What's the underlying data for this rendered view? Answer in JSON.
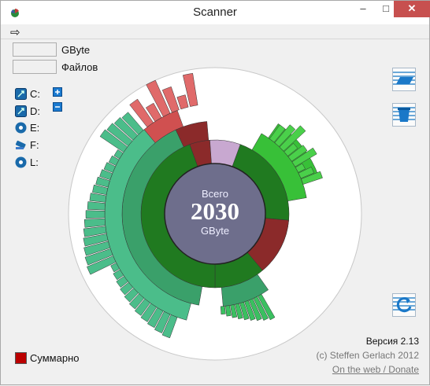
{
  "window": {
    "title": "Scanner",
    "minimize": "–",
    "maximize": "□",
    "close": "✕"
  },
  "menu": {
    "icon": "arrow-right-icon"
  },
  "fields": {
    "size_unit": "GByte",
    "files_label": "Файлов",
    "size_value": "",
    "files_value": ""
  },
  "drives": [
    {
      "label": "C:",
      "icon": "hard-drive-icon"
    },
    {
      "label": "D:",
      "icon": "hard-drive-icon"
    },
    {
      "label": "E:",
      "icon": "cd-drive-icon"
    },
    {
      "label": "F:",
      "icon": "usb-drive-icon"
    },
    {
      "label": "L:",
      "icon": "cd-drive-icon"
    }
  ],
  "expand": {
    "plus_icon": "plus-icon",
    "minus_icon": "minus-icon"
  },
  "chart": {
    "total_label": "Всего",
    "total_value": "2030",
    "total_unit": "GByte"
  },
  "toolbar": {
    "open_icon": "folder-open-icon",
    "trash_icon": "recycle-bin-icon",
    "refresh_icon": "refresh-icon"
  },
  "footer": {
    "version": "Версия 2.13",
    "copyright": "(c) Steffen Gerlach 2012",
    "link": "On the web / Donate",
    "summary": "Суммарно"
  },
  "colors": {
    "center": "#6e6e8c",
    "green_dark": "#207a20",
    "green_teal": "#3aa06a",
    "green_light": "#4bbd8a",
    "green_bright": "#38c038",
    "red": "#8b2a2a",
    "summary": "#b00000"
  }
}
